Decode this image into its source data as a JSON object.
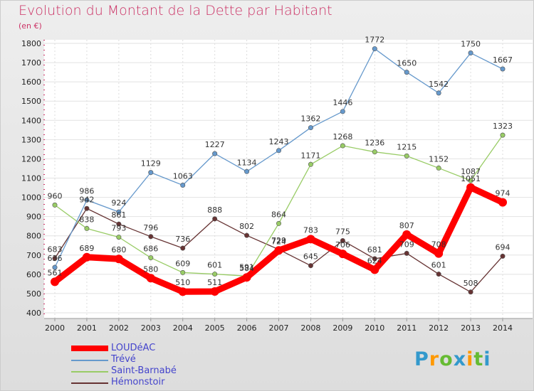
{
  "title": "Evolution du Montant de la Dette par Habitant",
  "unit_label": "(en €)",
  "logo": {
    "letters": [
      "P",
      "r",
      "o",
      "x",
      "i",
      "t",
      "i"
    ],
    "colors": [
      "#3399cc",
      "#ff9900",
      "#66bb33",
      "#3399cc",
      "#ff9900",
      "#66bb33",
      "#3399cc"
    ]
  },
  "chart_data": {
    "type": "line",
    "title": "Evolution du Montant de la Dette par Habitant",
    "ylabel": "(en €)",
    "xlabel": "",
    "x": [
      "2000",
      "2001",
      "2002",
      "2003",
      "2004",
      "2005",
      "2006",
      "2007",
      "2008",
      "2009",
      "2010",
      "2011",
      "2012",
      "2013",
      "2014"
    ],
    "ylim": [
      400,
      1800
    ],
    "yticks": [
      400,
      500,
      600,
      700,
      800,
      900,
      1000,
      1100,
      1200,
      1300,
      1400,
      1500,
      1600,
      1700,
      1800
    ],
    "grid": true,
    "legend_position": "bottom-left",
    "series": [
      {
        "name": "LOUDéAC",
        "color": "#ff0000",
        "values": [
          561,
          689,
          680,
          580,
          510,
          511,
          584,
          724,
          783,
          706,
          624,
          807,
          708,
          1051,
          974
        ]
      },
      {
        "name": "Trévé",
        "color": "#6699cc",
        "values": [
          636,
          986,
          924,
          1129,
          1063,
          1227,
          1134,
          1243,
          1362,
          1446,
          1772,
          1650,
          1542,
          1750,
          1667
        ]
      },
      {
        "name": "Saint-Barnabé",
        "color": "#99cc66",
        "values": [
          960,
          838,
          793,
          686,
          609,
          601,
          591,
          864,
          1171,
          1268,
          1236,
          1215,
          1152,
          1087,
          1323
        ]
      },
      {
        "name": "Hémonstoir",
        "color": "#663333",
        "values": [
          683,
          942,
          861,
          796,
          736,
          888,
          802,
          729,
          645,
          775,
          681,
          709,
          601,
          508,
          694
        ]
      }
    ]
  }
}
